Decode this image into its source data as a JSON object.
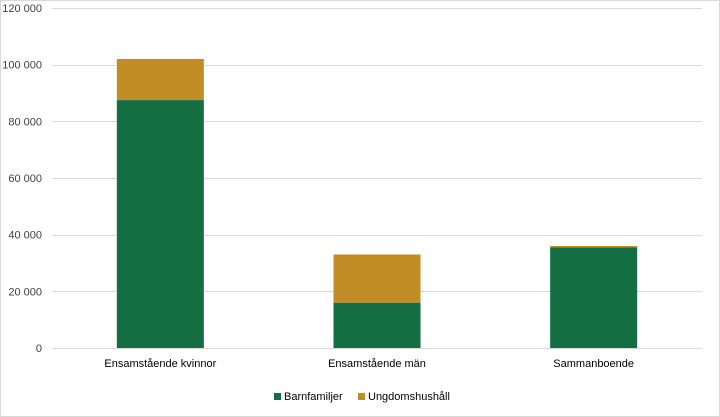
{
  "chart_data": {
    "type": "bar",
    "stacked": true,
    "categories": [
      "Ensamstående kvinnor",
      "Ensamstående män",
      "Sammanboende"
    ],
    "series": [
      {
        "name": "Barnfamiljer",
        "color": "#136e41",
        "values": [
          87500,
          16000,
          35500
        ]
      },
      {
        "name": "Ungdomshushåll",
        "color": "#c28d25",
        "values": [
          14500,
          17000,
          500
        ]
      }
    ],
    "ylim": [
      0,
      120000
    ],
    "yticks": [
      0,
      20000,
      40000,
      60000,
      80000,
      100000,
      120000
    ],
    "ytick_labels": [
      "0",
      "20 000",
      "40 000",
      "60 000",
      "80 000",
      "100 000",
      "120 000"
    ],
    "grid": true,
    "legend": "bottom"
  }
}
